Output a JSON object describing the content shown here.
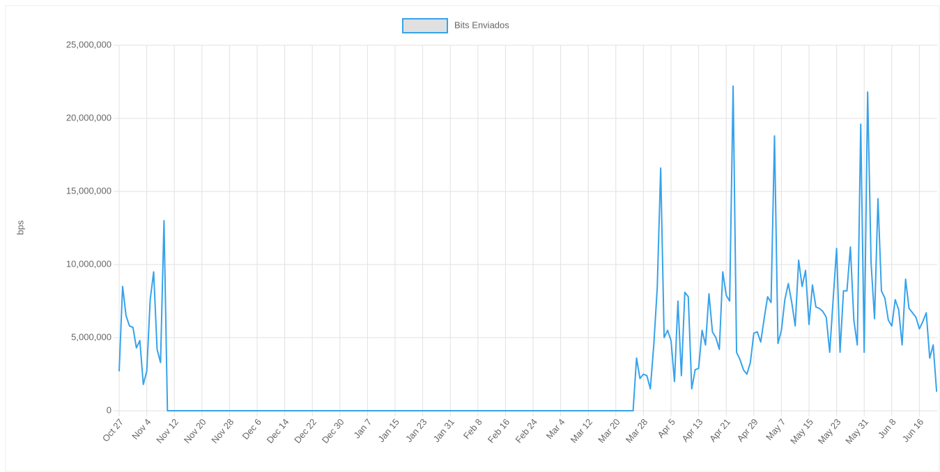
{
  "chart_data": {
    "type": "line",
    "y_label": "bps",
    "categories": [
      "Oct 27",
      null,
      null,
      null,
      null,
      null,
      null,
      null,
      "Nov 4",
      null,
      null,
      null,
      null,
      null,
      null,
      null,
      "Nov 12",
      null,
      null,
      null,
      null,
      null,
      null,
      null,
      "Nov 20",
      null,
      null,
      null,
      null,
      null,
      null,
      null,
      "Nov 28",
      null,
      null,
      null,
      null,
      null,
      null,
      null,
      "Dec 6",
      null,
      null,
      null,
      null,
      null,
      null,
      null,
      "Dec 14",
      null,
      null,
      null,
      null,
      null,
      null,
      null,
      "Dec 22",
      null,
      null,
      null,
      null,
      null,
      null,
      null,
      "Dec 30",
      null,
      null,
      null,
      null,
      null,
      null,
      null,
      "Jan 7",
      null,
      null,
      null,
      null,
      null,
      null,
      null,
      "Jan 15",
      null,
      null,
      null,
      null,
      null,
      null,
      null,
      "Jan 23",
      null,
      null,
      null,
      null,
      null,
      null,
      null,
      "Jan 31",
      null,
      null,
      null,
      null,
      null,
      null,
      null,
      "Feb 8",
      null,
      null,
      null,
      null,
      null,
      null,
      null,
      "Feb 16",
      null,
      null,
      null,
      null,
      null,
      null,
      null,
      "Feb 24",
      null,
      null,
      null,
      null,
      null,
      null,
      null,
      "Mar 4",
      null,
      null,
      null,
      null,
      null,
      null,
      null,
      "Mar 12",
      null,
      null,
      null,
      null,
      null,
      null,
      null,
      "Mar 20",
      null,
      null,
      null,
      null,
      null,
      null,
      null,
      "Mar 28",
      null,
      null,
      null,
      null,
      null,
      null,
      null,
      "Apr 5",
      null,
      null,
      null,
      null,
      null,
      null,
      null,
      "Apr 13",
      null,
      null,
      null,
      null,
      null,
      null,
      null,
      "Apr 21",
      null,
      null,
      null,
      null,
      null,
      null,
      null,
      "Apr 29",
      null,
      null,
      null,
      null,
      null,
      null,
      null,
      "May 7",
      null,
      null,
      null,
      null,
      null,
      null,
      null,
      "May 15",
      null,
      null,
      null,
      null,
      null,
      null,
      null,
      "May 23",
      null,
      null,
      null,
      null,
      null,
      null,
      null,
      "May 31",
      null,
      null,
      null,
      null,
      null,
      null,
      null,
      "Jun 8",
      null,
      null,
      null,
      null,
      null,
      null,
      null,
      "Jun 16",
      null,
      null,
      null,
      null,
      null
    ],
    "series": [
      {
        "name": "Bits Enviados",
        "color": "#36a2eb",
        "values": [
          2700000,
          8500000,
          6500000,
          5800000,
          5700000,
          4300000,
          4800000,
          1800000,
          2700000,
          7600000,
          9500000,
          4200000,
          3300000,
          13000000,
          0,
          0,
          0,
          0,
          0,
          0,
          0,
          0,
          0,
          0,
          0,
          0,
          0,
          0,
          0,
          0,
          0,
          0,
          0,
          0,
          0,
          0,
          0,
          0,
          0,
          0,
          0,
          0,
          0,
          0,
          0,
          0,
          0,
          0,
          0,
          0,
          0,
          0,
          0,
          0,
          0,
          0,
          0,
          0,
          0,
          0,
          0,
          0,
          0,
          0,
          0,
          0,
          0,
          0,
          0,
          0,
          0,
          0,
          0,
          0,
          0,
          0,
          0,
          0,
          0,
          0,
          0,
          0,
          0,
          0,
          0,
          0,
          0,
          0,
          0,
          0,
          0,
          0,
          0,
          0,
          0,
          0,
          0,
          0,
          0,
          0,
          0,
          0,
          0,
          0,
          0,
          0,
          0,
          0,
          0,
          0,
          0,
          0,
          0,
          0,
          0,
          0,
          0,
          0,
          0,
          0,
          0,
          0,
          0,
          0,
          0,
          0,
          0,
          0,
          0,
          0,
          0,
          0,
          0,
          0,
          0,
          0,
          0,
          0,
          0,
          0,
          0,
          0,
          0,
          0,
          0,
          0,
          0,
          0,
          0,
          0,
          3600000,
          2200000,
          2500000,
          2400000,
          1500000,
          4500000,
          8400000,
          16600000,
          5000000,
          5500000,
          4800000,
          2000000,
          7500000,
          2400000,
          8100000,
          7800000,
          1500000,
          2800000,
          2900000,
          5500000,
          4500000,
          8000000,
          5400000,
          5000000,
          4200000,
          9500000,
          7900000,
          7500000,
          22200000,
          4000000,
          3500000,
          2800000,
          2500000,
          3300000,
          5300000,
          5400000,
          4700000,
          6300000,
          7800000,
          7400000,
          18800000,
          4600000,
          5500000,
          7600000,
          8700000,
          7400000,
          5800000,
          10300000,
          8500000,
          9600000,
          5900000,
          8600000,
          7100000,
          7000000,
          6800000,
          6400000,
          4000000,
          7600000,
          11100000,
          4000000,
          8200000,
          8200000,
          11200000,
          6200000,
          4500000,
          19600000,
          4000000,
          21800000,
          10100000,
          6300000,
          14500000,
          8200000,
          7700000,
          6200000,
          5800000,
          7600000,
          6900000,
          4500000,
          9000000,
          7000000,
          6700000,
          6400000,
          5600000,
          6100000,
          6700000,
          3600000,
          4500000,
          1300000
        ]
      }
    ],
    "ylim": [
      0,
      25000000
    ],
    "yticks": [
      0,
      {
        "value": 5000000,
        "label": "5,000,000"
      },
      {
        "value": 10000000,
        "label": "10,000,000"
      },
      {
        "value": 15000000,
        "label": "15,000,000"
      },
      {
        "value": 20000000,
        "label": "20,000,000"
      },
      {
        "value": 25000000,
        "label": "25,000,000"
      }
    ],
    "grid": true,
    "legend": "top"
  }
}
